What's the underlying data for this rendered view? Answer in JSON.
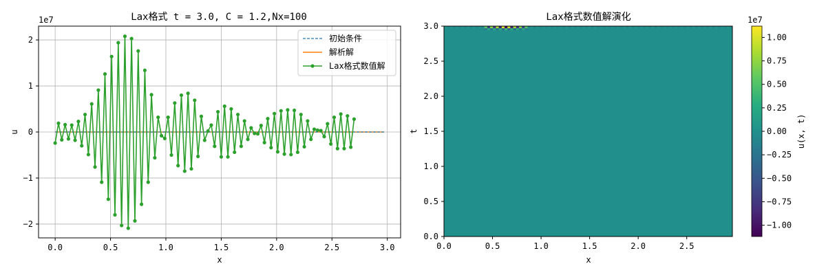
{
  "chart_data": [
    {
      "type": "line",
      "title": "Lax格式 t = 3.0, C = 1.2,Nx=100",
      "xlabel": "x",
      "ylabel": "u",
      "y_scale_label": "1e7",
      "xlim": [
        -0.15,
        3.12
      ],
      "ylim": [
        -23,
        23
      ],
      "grid": true,
      "legend_position": "top-right",
      "xticks": [
        0.0,
        0.5,
        1.0,
        1.5,
        2.0,
        2.5,
        3.0
      ],
      "xtick_labels": [
        "0.0",
        "0.5",
        "1.0",
        "1.5",
        "2.0",
        "2.5",
        "3.0"
      ],
      "yticks": [
        -2,
        -1,
        0,
        1,
        2
      ],
      "ytick_labels": [
        "−2",
        "−1",
        "0",
        "1",
        "2"
      ],
      "series": [
        {
          "name": "初始条件",
          "style": "dashed",
          "color": "#1f77b4",
          "x": [
            0.0,
            2.97
          ],
          "y": [
            0,
            0
          ]
        },
        {
          "name": "解析解",
          "style": "solid",
          "color": "#ff7f0e",
          "x": [
            0.0,
            2.97
          ],
          "y": [
            0,
            0
          ]
        },
        {
          "name": "Lax格式数值解",
          "style": "solid-marker",
          "color": "#2ca02c",
          "x0": 0.0,
          "dx": 0.03,
          "y": [
            -2.4,
            1.9,
            -1.7,
            1.6,
            -1.5,
            1.5,
            -1.8,
            2.3,
            -3.0,
            3.8,
            -4.9,
            6.1,
            -7.6,
            9.1,
            -10.9,
            12.6,
            -14.6,
            16.4,
            -18.0,
            19.4,
            -20.3,
            20.8,
            -20.9,
            20.3,
            -19.3,
            17.6,
            -15.7,
            13.4,
            -10.9,
            8.1,
            -5.6,
            3.2,
            -0.8,
            -1.4,
            3.2,
            -5.0,
            6.3,
            -7.3,
            8.0,
            -8.5,
            8.4,
            -8.0,
            6.9,
            -5.3,
            3.4,
            -1.8,
            0.2,
            1.5,
            -3.1,
            4.4,
            -5.4,
            5.6,
            -5.4,
            5.0,
            -4.4,
            3.8,
            -3.1,
            2.4,
            -1.6,
            0.9,
            -0.3,
            -0.4,
            1.4,
            -2.3,
            2.9,
            -3.4,
            4.0,
            -4.3,
            4.6,
            -4.8,
            4.8,
            -4.9,
            4.7,
            -4.4,
            3.8,
            -3.2,
            2.4,
            -1.6,
            0.6,
            0.4,
            0.3,
            -1.0,
            1.8,
            -2.6,
            3.2,
            -3.6,
            3.9,
            -3.6,
            3.5,
            -3.3,
            2.8
          ],
          "ylabel_note": "values in units of 1e7"
        }
      ]
    },
    {
      "type": "heatmap",
      "title": "Lax格式数值解演化",
      "xlabel": "x",
      "ylabel": "t",
      "xlim": [
        0.0,
        2.97
      ],
      "ylim": [
        0.0,
        3.0
      ],
      "xticks": [
        0.0,
        0.5,
        1.0,
        1.5,
        2.0,
        2.5
      ],
      "xtick_labels": [
        "0.0",
        "0.5",
        "1.0",
        "1.5",
        "2.0",
        "2.5"
      ],
      "yticks": [
        0.0,
        0.5,
        1.0,
        1.5,
        2.0,
        2.5,
        3.0
      ],
      "ytick_labels": [
        "0.0",
        "0.5",
        "1.0",
        "1.5",
        "2.0",
        "2.5",
        "3.0"
      ],
      "colormap": "viridis",
      "background_value": 0,
      "note": "field is essentially zero everywhere except an alternating checkerboard near t=3.0 for x≈0.4–0.9",
      "hot_band": {
        "t_from": 2.97,
        "t_to": 3.0,
        "x_from": 0.4,
        "x_to": 0.85,
        "amplitude": 1.05
      },
      "colorbar": {
        "label": "u(x, t)",
        "scale_label": "1e7",
        "range": [
          -1.12,
          1.12
        ],
        "ticks": [
          1.0,
          0.75,
          0.5,
          0.25,
          0.0,
          -0.25,
          -0.5,
          -0.75,
          -1.0
        ],
        "tick_labels": [
          "1.00",
          "0.75",
          "0.50",
          "0.25",
          "0.00",
          "−0.25",
          "−0.50",
          "−0.75",
          "−1.00"
        ]
      }
    }
  ]
}
